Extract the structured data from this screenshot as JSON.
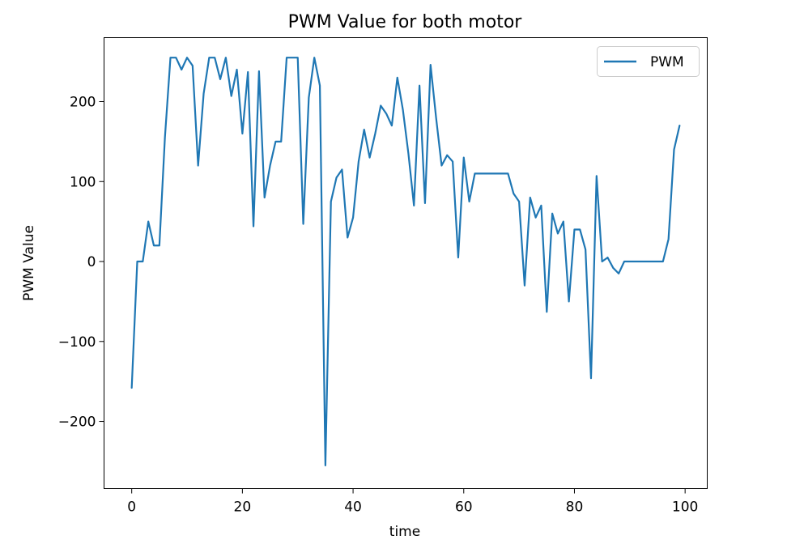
{
  "chart_data": {
    "type": "line",
    "title": "PWM Value for both motor",
    "xlabel": "time",
    "ylabel": "PWM Value",
    "xlim": [
      -5,
      104
    ],
    "ylim": [
      -284,
      280
    ],
    "xticks": [
      0,
      20,
      40,
      60,
      80,
      100
    ],
    "yticks": [
      -200,
      -100,
      0,
      100,
      200
    ],
    "xtick_labels": [
      "0",
      "20",
      "40",
      "60",
      "80",
      "100"
    ],
    "ytick_labels": [
      "−200",
      "−100",
      "0",
      "100",
      "200"
    ],
    "grid": false,
    "legend": "top-right",
    "series": [
      {
        "name": "PWM",
        "color": "#1f77b4",
        "x": [
          0,
          1,
          2,
          3,
          4,
          5,
          6,
          7,
          8,
          9,
          10,
          11,
          12,
          13,
          14,
          15,
          16,
          17,
          18,
          19,
          20,
          21,
          22,
          23,
          24,
          25,
          26,
          27,
          28,
          29,
          30,
          31,
          32,
          33,
          34,
          35,
          36,
          37,
          38,
          39,
          40,
          41,
          42,
          43,
          44,
          45,
          46,
          47,
          48,
          49,
          50,
          51,
          52,
          53,
          54,
          55,
          56,
          57,
          58,
          59,
          60,
          61,
          62,
          63,
          64,
          65,
          66,
          67,
          68,
          69,
          70,
          71,
          72,
          73,
          74,
          75,
          76,
          77,
          78,
          79,
          80,
          81,
          82,
          83,
          84,
          85,
          86,
          87,
          88,
          89,
          90,
          91,
          92,
          93,
          94,
          95,
          96,
          97,
          98,
          99
        ],
        "values": [
          -158,
          0,
          0,
          50,
          20,
          20,
          155,
          255,
          255,
          240,
          255,
          245,
          120,
          210,
          255,
          255,
          228,
          255,
          207,
          240,
          160,
          237,
          44,
          238,
          80,
          120,
          150,
          150,
          255,
          255,
          255,
          47,
          205,
          255,
          220,
          -255,
          75,
          105,
          115,
          30,
          55,
          125,
          165,
          130,
          160,
          195,
          185,
          170,
          230,
          190,
          135,
          70,
          220,
          73,
          246,
          180,
          120,
          133,
          125,
          5,
          130,
          75,
          110,
          110,
          110,
          110,
          110,
          110,
          110,
          85,
          75,
          -30,
          80,
          55,
          70,
          -63,
          60,
          35,
          50,
          -50,
          40,
          40,
          15,
          -146,
          107,
          0,
          5,
          -8,
          -15,
          0,
          0,
          0,
          0,
          0,
          0,
          0,
          0,
          28,
          140,
          170
        ]
      }
    ]
  }
}
